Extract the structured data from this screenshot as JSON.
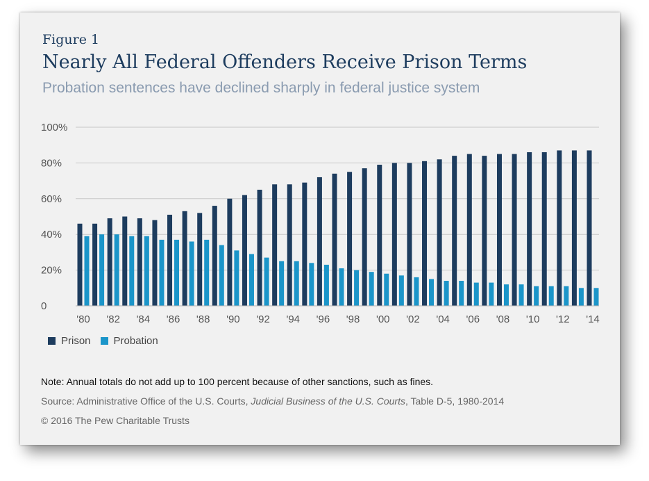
{
  "figure_label": "Figure 1",
  "title": "Nearly All Federal Offenders Receive Prison Terms",
  "subtitle": "Probation sentences have declined sharply in federal justice system",
  "note": "Note: Annual totals do not add up to 100 percent because of other sanctions, such as fines.",
  "source": {
    "prefix": "Source: Administrative Office of the U.S. Courts, ",
    "italic": "Judicial Business of the U.S. Courts",
    "suffix": ", Table D-5, 1980-2014"
  },
  "copyright": "© 2016 The Pew Charitable Trusts",
  "colors": {
    "prison": "#1d3c5e",
    "probation": "#1b95c9",
    "grid": "#c8c8c8"
  },
  "chart_data": {
    "type": "bar",
    "categories": [
      1980,
      1981,
      1982,
      1983,
      1984,
      1985,
      1986,
      1987,
      1988,
      1989,
      1990,
      1991,
      1992,
      1993,
      1994,
      1995,
      1996,
      1997,
      1998,
      1999,
      2000,
      2001,
      2002,
      2003,
      2004,
      2005,
      2006,
      2007,
      2008,
      2009,
      2010,
      2011,
      2012,
      2013,
      2014
    ],
    "x_tick_labels": [
      "'80",
      "'82",
      "'84",
      "'86",
      "'88",
      "'90",
      "'92",
      "'94",
      "'96",
      "'98",
      "'00",
      "'02",
      "'04",
      "'06",
      "'08",
      "'10",
      "'12",
      "'14"
    ],
    "y_tick_labels": [
      "100%",
      "80%",
      "60%",
      "40%",
      "20%",
      "0"
    ],
    "ylim": [
      0,
      100
    ],
    "grid": true,
    "legend": "bottom-left",
    "series": [
      {
        "name": "Prison",
        "values": [
          46,
          46,
          49,
          50,
          49,
          48,
          51,
          53,
          52,
          56,
          60,
          62,
          65,
          68,
          68,
          69,
          72,
          74,
          75,
          77,
          79,
          80,
          80,
          81,
          82,
          84,
          85,
          84,
          85,
          85,
          86,
          86,
          87,
          87,
          87
        ]
      },
      {
        "name": "Probation",
        "values": [
          39,
          40,
          40,
          39,
          39,
          37,
          37,
          36,
          37,
          34,
          31,
          29,
          27,
          25,
          25,
          24,
          23,
          21,
          20,
          19,
          18,
          17,
          16,
          15,
          14,
          14,
          13,
          13,
          12,
          12,
          11,
          11,
          11,
          10,
          10
        ]
      }
    ]
  }
}
